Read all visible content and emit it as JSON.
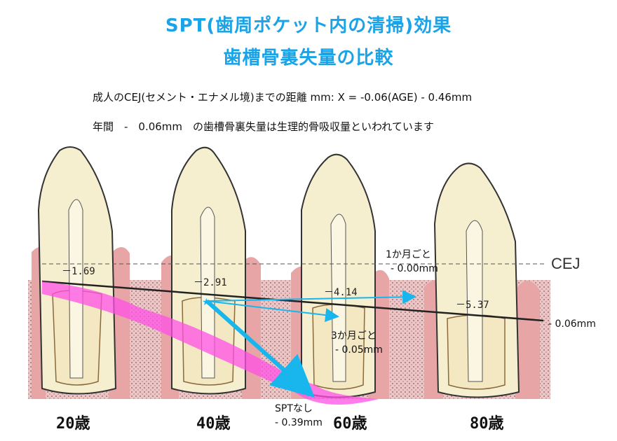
{
  "title": {
    "line1": "SPT(歯周ポケット内の清掃)効果",
    "line2": "歯槽骨裏失量の比較"
  },
  "subtitle": {
    "line1": "成人のCEJ(セメント・エナメル境)までの距離 mm: X = -0.06(AGE) - 0.46mm",
    "line2": "年間　-　0.06mm　の歯槽骨裏失量は生理的骨吸収量といわれています"
  },
  "teeth": [
    {
      "age": "20歳",
      "value": "－1.69"
    },
    {
      "age": "40歳",
      "value": "－2.91"
    },
    {
      "age": "60歳",
      "value": "－4.14"
    },
    {
      "age": "80歳",
      "value": "－5.37"
    }
  ],
  "annotations": {
    "cej": "CEJ",
    "rate_label": "- 0.06mm",
    "one_month": {
      "line1": "1か月ごと",
      "line2": "- 0.00mm"
    },
    "three_month": {
      "line1": "3か月ごと",
      "line2": "- 0.05mm"
    },
    "no_spt": {
      "line1": "SPTなし",
      "line2": "- 0.39mm"
    }
  },
  "colors": {
    "title": "#1aa3e6",
    "tooth": "#f6efcf",
    "gum": "#e8a5a5",
    "bone": "#ecc6c6",
    "arrow_no_spt": "#ff50e6",
    "arrow_spt": "#19b6ee",
    "dentin": "#d7c08c"
  }
}
